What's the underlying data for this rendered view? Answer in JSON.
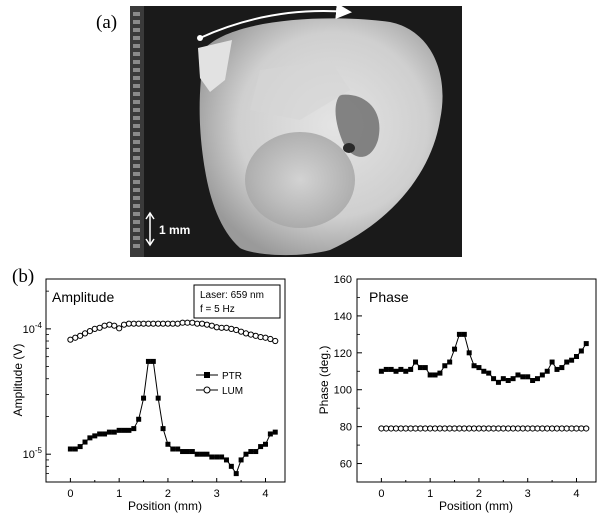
{
  "panel_a": {
    "label": "(a)",
    "scale_bar_label": "1 mm"
  },
  "panel_b_label": "(b)",
  "chart_data": [
    {
      "type": "line",
      "title": "Amplitude",
      "annotation_lines": [
        "Laser: 659 nm",
        "f = 5 Hz"
      ],
      "xlabel": "Position (mm)",
      "ylabel": "Amplitude (V)",
      "xlim": [
        -0.5,
        4.4
      ],
      "y_scale": "log",
      "ylim": [
        6e-06,
        0.00025
      ],
      "x_ticks": [
        0,
        1,
        2,
        3,
        4
      ],
      "y_tick_values": [
        1e-05,
        0.0001
      ],
      "y_tick_base": "10",
      "y_tick_exponents": [
        "-5",
        "-4"
      ],
      "grid": false,
      "legend_position": "center-right",
      "series": [
        {
          "name": "PTR",
          "marker": "filled-square",
          "x": [
            0,
            0.1,
            0.2,
            0.3,
            0.4,
            0.5,
            0.6,
            0.7,
            0.8,
            0.9,
            1.0,
            1.1,
            1.2,
            1.3,
            1.4,
            1.5,
            1.6,
            1.7,
            1.8,
            1.9,
            2.0,
            2.1,
            2.2,
            2.3,
            2.4,
            2.5,
            2.6,
            2.7,
            2.8,
            2.9,
            3.0,
            3.1,
            3.2,
            3.3,
            3.4,
            3.5,
            3.6,
            3.7,
            3.8,
            3.9,
            4.0,
            4.1,
            4.2
          ],
          "values": [
            1.1e-05,
            1.1e-05,
            1.15e-05,
            1.25e-05,
            1.35e-05,
            1.4e-05,
            1.45e-05,
            1.45e-05,
            1.5e-05,
            1.5e-05,
            1.55e-05,
            1.55e-05,
            1.55e-05,
            1.6e-05,
            1.9e-05,
            2.8e-05,
            5.5e-05,
            5.5e-05,
            2.8e-05,
            1.6e-05,
            1.2e-05,
            1.1e-05,
            1.1e-05,
            1.05e-05,
            1.05e-05,
            1.05e-05,
            1e-05,
            1e-05,
            1e-05,
            9.5e-06,
            9.5e-06,
            9.5e-06,
            9e-06,
            8e-06,
            7e-06,
            9e-06,
            1e-05,
            1.05e-05,
            1.05e-05,
            1.15e-05,
            1.2e-05,
            1.45e-05,
            1.5e-05
          ]
        },
        {
          "name": "LUM",
          "marker": "open-circle",
          "x": [
            0,
            0.1,
            0.2,
            0.3,
            0.4,
            0.5,
            0.6,
            0.7,
            0.8,
            0.9,
            1.0,
            1.1,
            1.2,
            1.3,
            1.4,
            1.5,
            1.6,
            1.7,
            1.8,
            1.9,
            2.0,
            2.1,
            2.2,
            2.3,
            2.4,
            2.5,
            2.6,
            2.7,
            2.8,
            2.9,
            3.0,
            3.1,
            3.2,
            3.3,
            3.4,
            3.5,
            3.6,
            3.7,
            3.8,
            3.9,
            4.0,
            4.1,
            4.2
          ],
          "values": [
            8.2e-05,
            8.5e-05,
            8.8e-05,
            9.2e-05,
            9.6e-05,
            0.0001,
            0.000102,
            0.000106,
            0.000108,
            0.000106,
            0.000101,
            0.000108,
            0.00011,
            0.00011,
            0.00011,
            0.00011,
            0.00011,
            0.00011,
            0.00011,
            0.00011,
            0.00011,
            0.00011,
            0.00011,
            0.000112,
            0.000112,
            0.000112,
            0.00011,
            0.00011,
            0.000108,
            0.000106,
            0.000103,
            0.000102,
            0.000102,
            0.0001,
            9.8e-05,
            9.5e-05,
            9.2e-05,
            9e-05,
            8.8e-05,
            8.6e-05,
            8.5e-05,
            8.3e-05,
            8e-05
          ]
        }
      ]
    },
    {
      "type": "line",
      "title": "Phase",
      "xlabel": "Position (mm)",
      "ylabel": "Phase (deg.)",
      "xlim": [
        -0.5,
        4.4
      ],
      "ylim": [
        50,
        160
      ],
      "x_ticks": [
        0,
        1,
        2,
        3,
        4
      ],
      "y_ticks": [
        60,
        80,
        100,
        120,
        140,
        160
      ],
      "grid": false,
      "series": [
        {
          "marker": "filled-square",
          "x": [
            0,
            0.1,
            0.2,
            0.3,
            0.4,
            0.5,
            0.6,
            0.7,
            0.8,
            0.9,
            1.0,
            1.1,
            1.2,
            1.3,
            1.4,
            1.5,
            1.6,
            1.7,
            1.8,
            1.9,
            2.0,
            2.1,
            2.2,
            2.3,
            2.4,
            2.5,
            2.6,
            2.7,
            2.8,
            2.9,
            3.0,
            3.1,
            3.2,
            3.3,
            3.4,
            3.5,
            3.6,
            3.7,
            3.8,
            3.9,
            4.0,
            4.1,
            4.2
          ],
          "values": [
            110,
            111,
            111,
            110,
            111,
            110,
            111,
            115,
            112,
            112,
            108,
            108,
            109,
            113,
            115,
            122,
            130,
            130,
            120,
            113,
            112,
            110,
            109,
            106,
            104,
            106,
            105,
            106,
            108,
            107,
            107,
            105,
            106,
            108,
            110,
            115,
            111,
            112,
            115,
            116,
            118,
            121,
            125
          ]
        },
        {
          "marker": "open-circle",
          "x": [
            0,
            0.1,
            0.2,
            0.3,
            0.4,
            0.5,
            0.6,
            0.7,
            0.8,
            0.9,
            1.0,
            1.1,
            1.2,
            1.3,
            1.4,
            1.5,
            1.6,
            1.7,
            1.8,
            1.9,
            2.0,
            2.1,
            2.2,
            2.3,
            2.4,
            2.5,
            2.6,
            2.7,
            2.8,
            2.9,
            3.0,
            3.1,
            3.2,
            3.3,
            3.4,
            3.5,
            3.6,
            3.7,
            3.8,
            3.9,
            4.0,
            4.1,
            4.2
          ],
          "values": [
            79,
            79,
            79,
            79,
            79,
            79,
            79,
            79,
            79,
            79,
            79,
            79,
            79,
            79,
            79,
            79,
            79,
            79,
            79,
            79,
            79,
            79,
            79,
            79,
            79,
            79,
            79,
            79,
            79,
            79,
            79,
            79,
            79,
            79,
            79,
            79,
            79,
            79,
            79,
            79,
            79,
            79,
            79
          ]
        }
      ]
    }
  ]
}
